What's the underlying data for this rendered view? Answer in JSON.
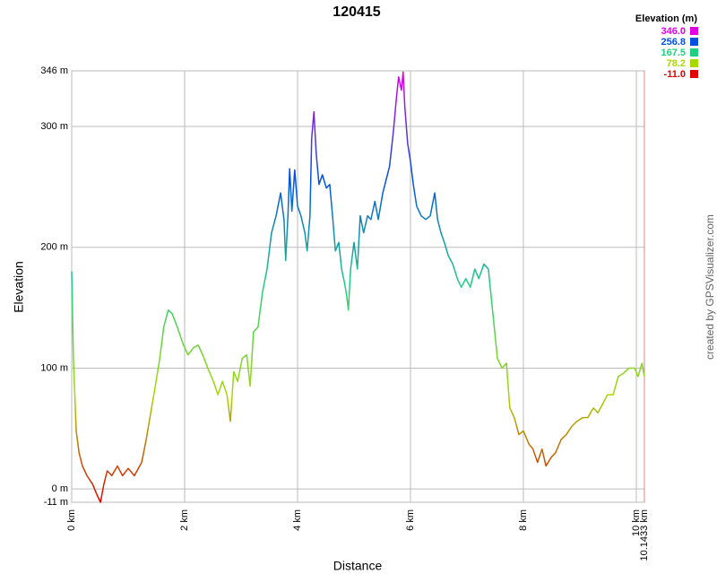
{
  "chart_data": {
    "type": "line",
    "title": "120415",
    "x_label": "Distance",
    "y_label": "Elevation",
    "credit": "created by GPSVisualizer.com",
    "legend_title": "Elevation (m)",
    "color_scale": [
      {
        "value": 346,
        "label": "346.0",
        "color": "#e000e0"
      },
      {
        "value": 256.8,
        "label": "256.8",
        "color": "#0050e0"
      },
      {
        "value": 167.5,
        "label": "167.5",
        "color": "#20d080"
      },
      {
        "value": 78.2,
        "label": "78.2",
        "color": "#a8d800"
      },
      {
        "value": -11,
        "label": "-11.0",
        "color": "#e00000"
      }
    ],
    "xlim": [
      0,
      10.1433
    ],
    "ylim": [
      -11,
      346
    ],
    "xticks": [
      {
        "value": 0,
        "label": "0 km"
      },
      {
        "value": 2,
        "label": "2 km"
      },
      {
        "value": 4,
        "label": "4 km"
      },
      {
        "value": 6,
        "label": "6 km"
      },
      {
        "value": 8,
        "label": "8 km"
      },
      {
        "value": 10,
        "label": "10 km"
      },
      {
        "value": 10.1433,
        "label": "10.1433 km"
      }
    ],
    "yticks": [
      {
        "value": -11,
        "label": "-11 m"
      },
      {
        "value": 0,
        "label": "0 m"
      },
      {
        "value": 100,
        "label": "100 m"
      },
      {
        "value": 200,
        "label": "200 m"
      },
      {
        "value": 300,
        "label": "300 m"
      },
      {
        "value": 346,
        "label": "346 m"
      }
    ],
    "grid": true,
    "x": [
      0,
      0.03,
      0.08,
      0.13,
      0.19,
      0.27,
      0.37,
      0.44,
      0.51,
      0.57,
      0.63,
      0.71,
      0.81,
      0.9,
      1.0,
      1.11,
      1.24,
      1.32,
      1.4,
      1.48,
      1.56,
      1.63,
      1.71,
      1.78,
      1.87,
      1.98,
      2.06,
      2.16,
      2.24,
      2.32,
      2.41,
      2.51,
      2.59,
      2.67,
      2.75,
      2.81,
      2.87,
      2.94,
      3.02,
      3.1,
      3.16,
      3.22,
      3.3,
      3.38,
      3.46,
      3.54,
      3.62,
      3.7,
      3.76,
      3.79,
      3.83,
      3.86,
      3.9,
      3.95,
      4.0,
      4.06,
      4.13,
      4.17,
      4.22,
      4.25,
      4.29,
      4.33,
      4.38,
      4.44,
      4.51,
      4.57,
      4.62,
      4.67,
      4.73,
      4.78,
      4.83,
      4.87,
      4.9,
      4.94,
      5.0,
      5.06,
      5.11,
      5.17,
      5.24,
      5.3,
      5.37,
      5.43,
      5.51,
      5.57,
      5.63,
      5.7,
      5.75,
      5.79,
      5.84,
      5.87,
      5.9,
      5.95,
      6.0,
      6.05,
      6.11,
      6.19,
      6.27,
      6.35,
      6.43,
      6.48,
      6.54,
      6.6,
      6.67,
      6.75,
      6.83,
      6.9,
      6.98,
      7.06,
      7.14,
      7.21,
      7.3,
      7.38,
      7.46,
      7.54,
      7.62,
      7.7,
      7.76,
      7.84,
      7.92,
      8.0,
      8.1,
      8.17,
      8.25,
      8.33,
      8.4,
      8.49,
      8.57,
      8.67,
      8.76,
      8.86,
      8.95,
      9.05,
      9.14,
      9.24,
      9.32,
      9.4,
      9.49,
      9.59,
      9.68,
      9.78,
      9.87,
      9.97,
      10.03,
      10.1,
      10.1433
    ],
    "values": [
      180,
      108,
      48,
      30,
      19,
      11,
      4,
      -4,
      -11,
      4,
      15,
      11,
      19,
      11,
      17,
      11,
      22,
      41,
      63,
      85,
      108,
      134,
      148,
      145,
      134,
      119,
      111,
      117,
      119,
      111,
      100,
      89,
      78,
      89,
      78,
      56,
      97,
      89,
      108,
      111,
      85,
      130,
      134,
      163,
      182,
      212,
      226,
      245,
      223,
      189,
      226,
      265,
      230,
      264,
      234,
      226,
      212,
      197,
      226,
      290,
      312,
      278,
      252,
      260,
      249,
      252,
      226,
      197,
      204,
      182,
      171,
      160,
      148,
      182,
      204,
      182,
      226,
      212,
      226,
      223,
      238,
      223,
      245,
      256,
      267,
      297,
      323,
      341,
      330,
      345,
      316,
      286,
      271,
      252,
      234,
      226,
      223,
      226,
      245,
      223,
      212,
      204,
      193,
      186,
      174,
      167,
      174,
      167,
      182,
      174,
      186,
      182,
      145,
      108,
      100,
      104,
      67,
      59,
      45,
      48,
      37,
      33,
      22,
      33,
      19,
      26,
      30,
      41,
      45,
      52,
      56,
      59,
      59,
      67,
      63,
      70,
      78,
      78,
      93,
      96,
      100,
      100,
      93,
      104,
      93
    ]
  }
}
